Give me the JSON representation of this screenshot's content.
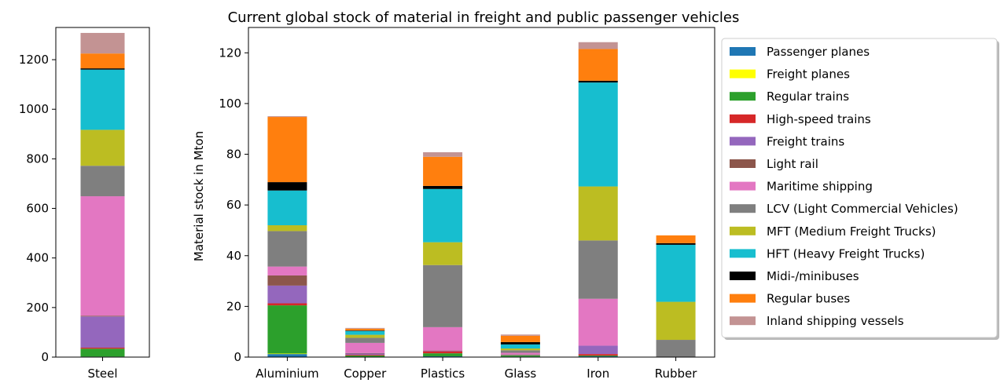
{
  "chart_data": {
    "type": "bar",
    "stacked": true,
    "title": "Current global stock of material in freight and public passenger vehicles",
    "legend_position": "right",
    "grid": false,
    "series_names": [
      "Passenger planes",
      "Freight planes",
      "Regular trains",
      "High-speed trains",
      "Freight trains",
      "Light rail",
      "Maritime shipping",
      "LCV (Light Commercial Vehicles)",
      "MFT (Medium Freight Trucks)",
      "HFT (Heavy Freight Trucks)",
      "Midi-/minibuses",
      "Regular buses",
      "Inland shipping vessels"
    ],
    "colors": [
      "#1f77b4",
      "#ffff00",
      "#2ca02c",
      "#d62728",
      "#9467bd",
      "#8c564b",
      "#e377c2",
      "#7f7f7f",
      "#bcbd22",
      "#17becf",
      "#000000",
      "#ff7f0e",
      "#c39393"
    ],
    "charts": [
      {
        "id": "steel",
        "categories": [
          "Steel"
        ],
        "ylabel": "",
        "ylim": [
          0,
          1330
        ],
        "yticks": [
          0,
          200,
          400,
          600,
          800,
          1000,
          1200
        ],
        "values": {
          "Steel": [
            2,
            0,
            32,
            4,
            126,
            3,
            482,
            123,
            145,
            243,
            5,
            60,
            83
          ]
        }
      },
      {
        "id": "materials",
        "categories": [
          "Aluminium",
          "Copper",
          "Plastics",
          "Glass",
          "Iron",
          "Rubber"
        ],
        "ylabel": "Material stock in Mton",
        "ylim": [
          0,
          130
        ],
        "yticks": [
          0,
          20,
          40,
          60,
          80,
          100,
          120
        ],
        "values": {
          "Aluminium": [
            1.2,
            0.2,
            19.0,
            0.8,
            7.0,
            4.0,
            3.5,
            14.0,
            2.3,
            13.7,
            3.3,
            25.7,
            0.3
          ],
          "Copper": [
            0.1,
            0.0,
            0.5,
            0.3,
            0.5,
            0.2,
            4.0,
            2.0,
            1.2,
            1.5,
            0.2,
            0.7,
            0.3
          ],
          "Plastics": [
            0.3,
            0.0,
            1.2,
            0.8,
            0.2,
            0.1,
            9.2,
            24.5,
            9.0,
            21.0,
            1.2,
            11.5,
            1.8
          ],
          "Glass": [
            0.2,
            0.0,
            0.5,
            0.1,
            0.2,
            0.1,
            0.6,
            1.0,
            0.7,
            1.6,
            0.9,
            2.5,
            0.5
          ],
          "Iron": [
            0.3,
            0.0,
            0.3,
            0.6,
            3.3,
            0.0,
            18.5,
            23.0,
            21.3,
            41.0,
            0.7,
            12.5,
            2.7
          ],
          "Rubber": [
            0.0,
            0.0,
            0.0,
            0.0,
            0.0,
            0.0,
            0.0,
            6.8,
            15.0,
            22.5,
            0.6,
            3.1,
            0.0
          ]
        }
      }
    ]
  }
}
